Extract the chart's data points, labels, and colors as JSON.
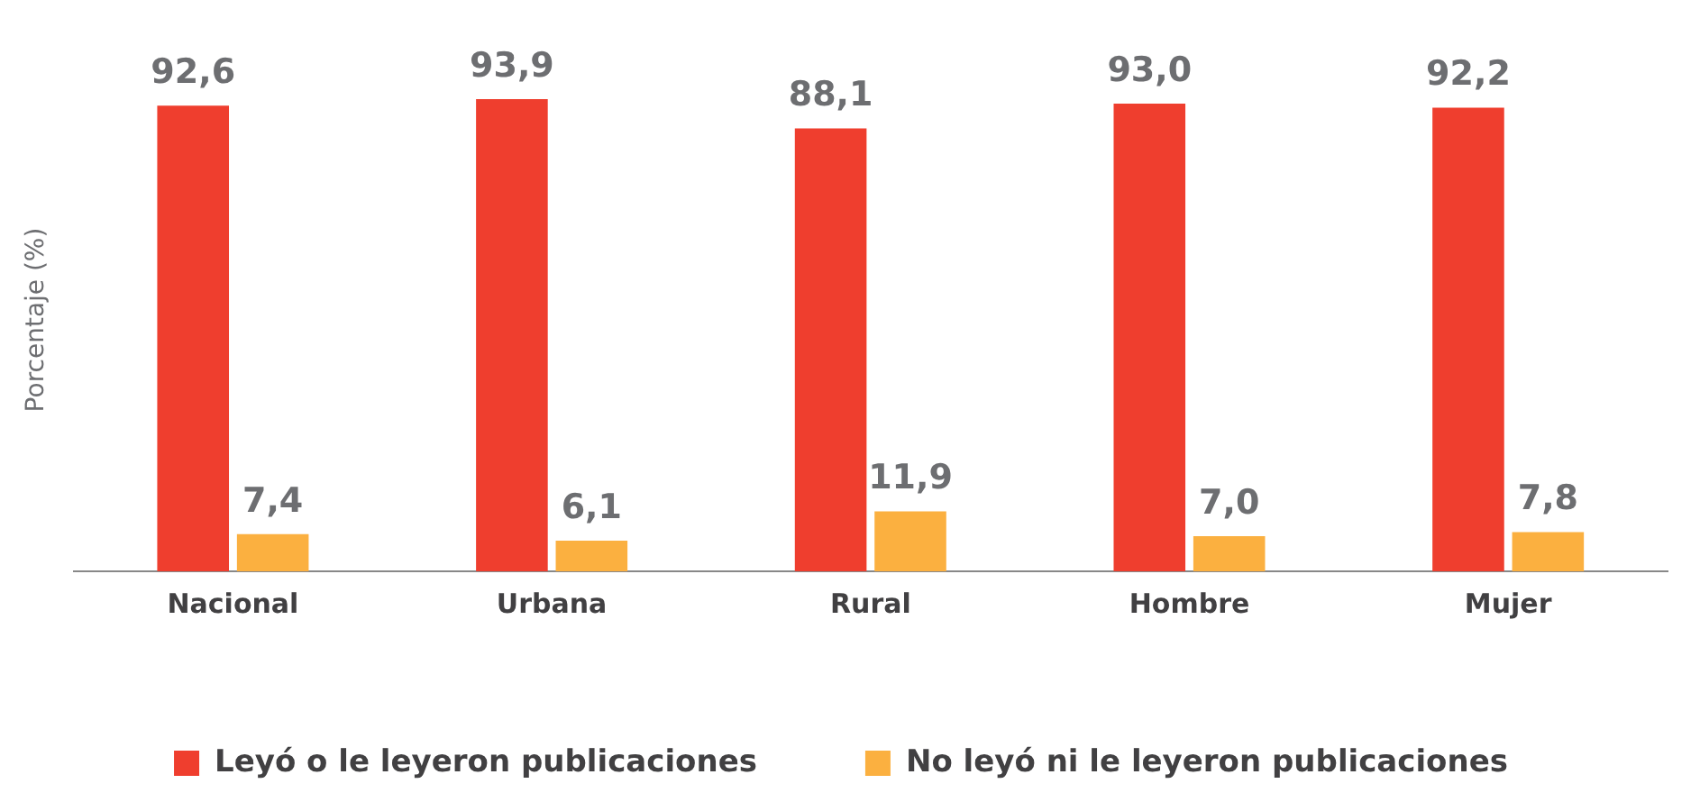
{
  "chart_data": {
    "type": "bar",
    "ylabel": "Porcentaje (%)",
    "categories": [
      "Nacional",
      "Urbana",
      "Rural",
      "Hombre",
      "Mujer"
    ],
    "series": [
      {
        "name": "Leyó o le leyeron publicaciones",
        "color": "#ef3e2e",
        "values": [
          92.6,
          93.9,
          88.1,
          93.0,
          92.2
        ],
        "value_labels": [
          "92,6",
          "93,9",
          "88,1",
          "93,0",
          "92,2"
        ]
      },
      {
        "name": "No leyó ni le leyeron publicaciones",
        "color": "#fbb040",
        "values": [
          7.4,
          6.1,
          11.9,
          7.0,
          7.8
        ],
        "value_labels": [
          "7,4",
          "6,1",
          "11,9",
          "7,0",
          "7,8"
        ]
      }
    ],
    "grid": false,
    "legend": "bottom"
  }
}
